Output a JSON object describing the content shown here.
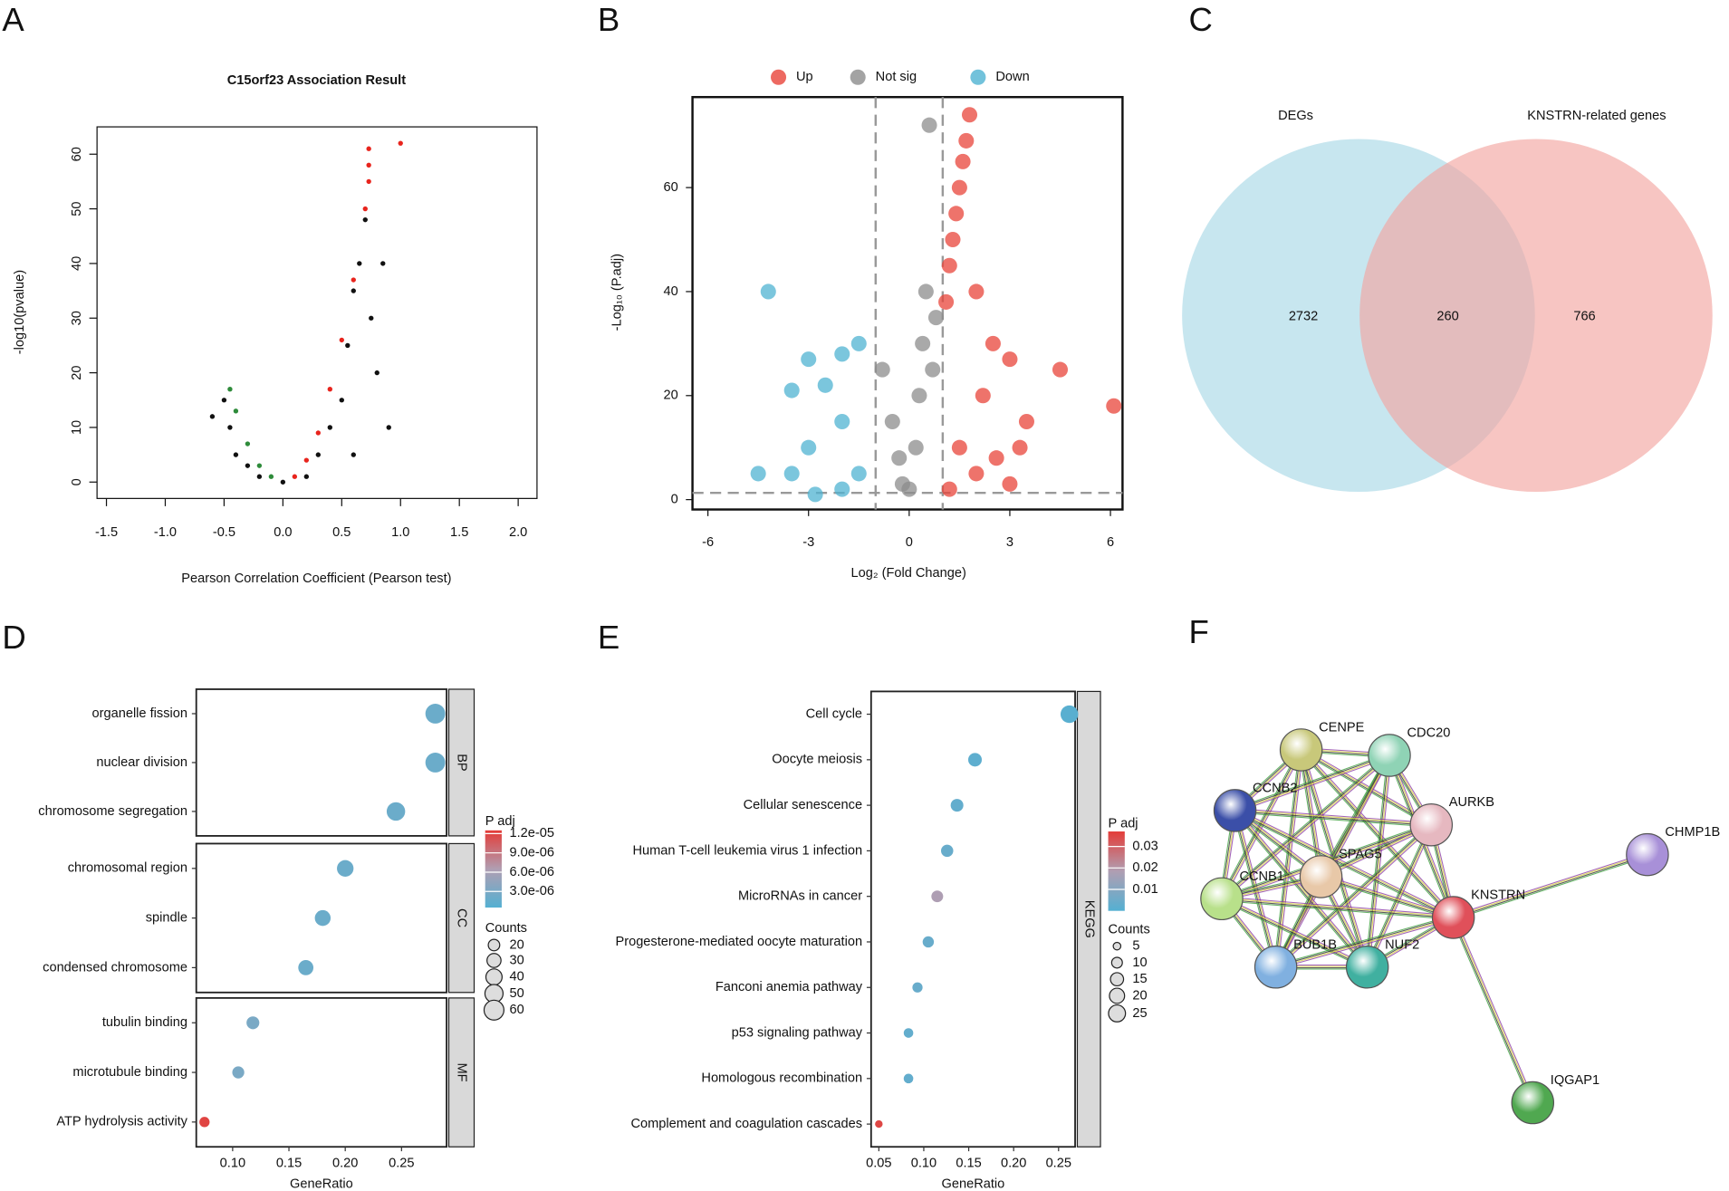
{
  "panel_labels": [
    "A",
    "B",
    "C",
    "D",
    "E",
    "F"
  ],
  "chart_data": [
    {
      "type": "scatter",
      "title": "C15orf23 Association Result",
      "x_label": "Pearson Correlation Coefficient (Pearson test)",
      "y_label": "-log10(pvalue)",
      "xlim": [
        -1.58,
        2.16
      ],
      "ylim": [
        -3,
        65
      ],
      "xticks": [
        -1.5,
        {
          "value": -1.0,
          "label": "-1.0"
        },
        -0.5,
        {
          "value": 0.0,
          "label": "0.0"
        },
        0.5,
        {
          "value": 1.0,
          "label": "1.0"
        },
        1.5,
        {
          "value": 2.0,
          "label": "2.0"
        }
      ],
      "yticks": [
        0,
        10,
        20,
        30,
        40,
        50,
        60
      ],
      "series": [
        {
          "color": "#111111",
          "x": [
            -0.6,
            -0.5,
            -0.45,
            -0.4,
            -0.3,
            -0.2,
            0.0,
            0.2,
            0.3,
            0.4,
            0.5,
            0.55,
            0.6,
            0.65,
            0.7,
            0.75,
            0.8,
            0.85,
            0.9,
            0.6
          ],
          "values": [
            12,
            15,
            10,
            5,
            3,
            1,
            0,
            1,
            5,
            10,
            15,
            25,
            35,
            40,
            48,
            30,
            20,
            40,
            10,
            5
          ]
        },
        {
          "color": "#e8241d",
          "x": [
            0.1,
            0.2,
            0.3,
            0.4,
            0.5,
            0.6,
            0.7,
            0.73,
            1.0,
            0.73,
            0.73
          ],
          "values": [
            1,
            4,
            9,
            17,
            26,
            37,
            50,
            61,
            62,
            58,
            55
          ]
        },
        {
          "color": "#2e8b3a",
          "x": [
            -0.1,
            -0.2,
            -0.3,
            -0.4,
            -0.45
          ],
          "values": [
            1,
            3,
            7,
            13,
            17
          ]
        }
      ]
    },
    {
      "type": "scatter",
      "legend": "top",
      "x_label": "Log₂ (Fold Change)",
      "y_label": "-Log₁₀ (P.adj)",
      "xlim": [
        -6.46,
        6.36
      ],
      "ylim": [
        -1.9,
        77.4
      ],
      "xticks": [
        -6,
        -3,
        0,
        3,
        6
      ],
      "yticks": [
        0,
        20,
        40,
        60
      ],
      "thresholds": {
        "x": [
          -1,
          1
        ],
        "y": 1.3
      },
      "series": [
        {
          "name": "Up",
          "color": "#e8443a",
          "x": [
            1.8,
            1.7,
            1.6,
            1.5,
            1.4,
            1.3,
            1.2,
            1.1,
            2.0,
            2.5,
            3.0,
            4.5,
            6.1,
            3.5,
            2.2,
            1.5,
            2.0,
            3.0,
            1.2,
            2.6,
            3.3
          ],
          "values": [
            74,
            69,
            65,
            60,
            55,
            50,
            45,
            38,
            40,
            30,
            27,
            25,
            18,
            15,
            20,
            10,
            5,
            3,
            2,
            8,
            10
          ]
        },
        {
          "name": "Not sig",
          "color": "#8c8c8c",
          "x": [
            0.6,
            0.5,
            0.4,
            0.3,
            0.2,
            0.0,
            -0.3,
            -0.5,
            -0.8,
            0.8,
            -0.2,
            0.7
          ],
          "values": [
            72,
            40,
            30,
            20,
            10,
            2,
            8,
            15,
            25,
            35,
            3,
            25
          ]
        },
        {
          "name": "Down",
          "color": "#4fb3d2",
          "x": [
            -4.2,
            -1.5,
            -2.0,
            -3.0,
            -3.5,
            -2.5,
            -2.0,
            -3.0,
            -4.5,
            -3.5,
            -1.5,
            -2.0,
            -2.8
          ],
          "values": [
            40,
            30,
            28,
            27,
            21,
            22,
            15,
            10,
            5,
            5,
            5,
            2,
            1
          ]
        }
      ]
    },
    {
      "type": "venn",
      "sets": [
        {
          "name": "DEGs",
          "color": "#a9d9e6"
        },
        {
          "name": "KNSTRN-related genes",
          "color": "#f3a6a1"
        }
      ],
      "regions": [
        2732,
        260,
        766
      ]
    },
    {
      "type": "dot",
      "x_label": "GeneRatio",
      "xlim": [
        0.0677,
        0.29
      ],
      "xticks": [
        {
          "value": 0.1,
          "label": "0.10"
        },
        0.15,
        {
          "value": 0.2,
          "label": "0.20"
        },
        0.25
      ],
      "facets": [
        {
          "name": "BP",
          "categories": [
            "organelle fission",
            "nuclear division",
            "chromosome segregation"
          ],
          "values": [
            0.28,
            0.28,
            0.245
          ],
          "counts": [
            60,
            60,
            52
          ],
          "padj": [
            2e-06,
            2e-06,
            2e-06
          ]
        },
        {
          "name": "CC",
          "categories": [
            "chromosomal region",
            "spindle",
            "condensed chromosome"
          ],
          "values": [
            0.2,
            0.18,
            0.165
          ],
          "counts": [
            42,
            38,
            35
          ],
          "padj": [
            2e-06,
            2e-06,
            2e-06
          ]
        },
        {
          "name": "MF",
          "categories": [
            "tubulin binding",
            "microtubule binding",
            "ATP hydrolysis activity"
          ],
          "values": [
            0.118,
            0.105,
            0.075
          ],
          "counts": [
            25,
            22,
            16
          ],
          "padj": [
            3e-06,
            3e-06,
            1.2e-05
          ]
        }
      ],
      "color_title": "P adj",
      "clim": [
        5e-07,
        1.25e-05
      ],
      "color_ticks": [
        {
          "value": 1.2e-05,
          "label": "1.2e-05"
        },
        {
          "value": 9e-06,
          "label": "9.0e-06"
        },
        {
          "value": 6e-06,
          "label": "6.0e-06"
        },
        {
          "value": 3e-06,
          "label": "3.0e-06"
        }
      ],
      "size_title": "Counts",
      "size_ticks": [
        20,
        30,
        40,
        50,
        60
      ]
    },
    {
      "type": "dot",
      "x_label": "GeneRatio",
      "xlim": [
        0.0414,
        0.2684
      ],
      "xticks": [
        0.05,
        {
          "value": 0.1,
          "label": "0.10"
        },
        0.15,
        {
          "value": 0.2,
          "label": "0.20"
        },
        0.25
      ],
      "facets": [
        {
          "name": "KEGG",
          "categories": [
            "Cell cycle",
            "Oocyte meiosis",
            "Cellular senescence",
            "Human T-cell leukemia virus 1 infection",
            "MicroRNAs in cancer",
            "Progesterone-mediated oocyte maturation",
            "Fanconi anemia pathway",
            "p53 signaling pathway",
            "Homologous recombination",
            "Complement and coagulation cascades"
          ],
          "values": [
            0.262,
            0.157,
            0.137,
            0.126,
            0.115,
            0.105,
            0.093,
            0.083,
            0.083,
            0.05
          ],
          "counts": [
            27,
            16,
            14,
            13,
            12,
            11,
            9,
            8,
            8,
            5
          ],
          "padj": [
            0.001,
            0.002,
            0.003,
            0.004,
            0.018,
            0.004,
            0.004,
            0.003,
            0.003,
            0.035
          ]
        }
      ],
      "color_title": "P adj",
      "clim": [
        0,
        0.037
      ],
      "color_ticks": [
        0.03,
        0.02,
        0.01
      ],
      "size_title": "Counts",
      "size_ticks": [
        5,
        10,
        15,
        20,
        25
      ]
    }
  ],
  "network": {
    "nodes": [
      "CENPE",
      "CDC20",
      "CCNB2",
      "AURKB",
      "SPAG5",
      "CCNB1",
      "KNSTRN",
      "CHMP1B",
      "BUB1B",
      "NUF2",
      "IQGAP1"
    ]
  }
}
